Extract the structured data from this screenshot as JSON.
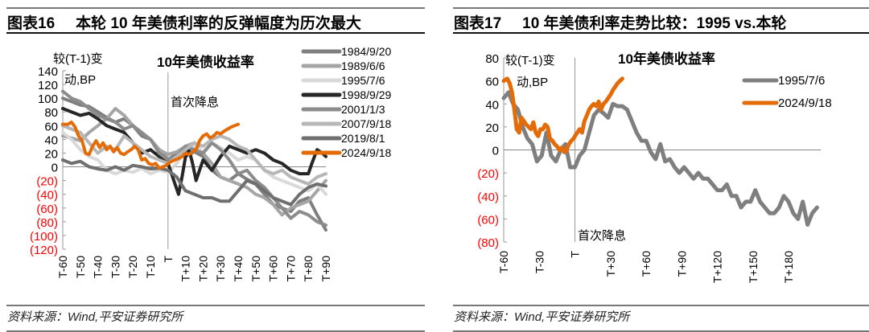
{
  "left_panel": {
    "figure_number": "图表16",
    "figure_title": "本轮 10 年美债利率的反弹幅度为历次最大",
    "source": "资料来源：Wind,平安证券研究所"
  },
  "right_panel": {
    "figure_number": "图表17",
    "figure_title": "10 年美债利率走势比较：1995 vs.本轮",
    "source": "资料来源：Wind,平安证券研究所"
  },
  "chart_data": [
    {
      "type": "line",
      "title": "10年美债收益率",
      "ylabel": "较(T-1)变动,BP",
      "annotation": "首次降息",
      "ylim": [
        -120,
        140
      ],
      "yticks": [
        "140",
        "120",
        "100",
        "80",
        "60",
        "40",
        "20",
        "0",
        "(20)",
        "(40)",
        "(60)",
        "(80)",
        "(100)",
        "(120)"
      ],
      "negative_tick_color": "#ff0000",
      "xticks": [
        "T-60",
        "T-50",
        "T-40",
        "T-30",
        "T-20",
        "T-10",
        "T",
        "T+10",
        "T+20",
        "T+30",
        "T+40",
        "T+50",
        "T+60",
        "T+70",
        "T+80",
        "T+90"
      ],
      "x_range": [
        -60,
        90
      ],
      "legend_position": "upper right",
      "series": [
        {
          "name": "1984/9/20",
          "color": "#7f7f7f",
          "width": 4,
          "x": [
            -60,
            -55,
            -50,
            -45,
            -40,
            -35,
            -30,
            -25,
            -20,
            -15,
            -10,
            -5,
            0,
            5,
            10,
            15,
            20,
            25,
            30,
            35,
            40,
            45,
            50,
            55,
            60,
            65,
            70,
            75,
            80,
            85,
            90
          ],
          "values": [
            100,
            95,
            90,
            88,
            80,
            72,
            65,
            70,
            60,
            45,
            40,
            25,
            10,
            20,
            15,
            22,
            15,
            -5,
            -15,
            -20,
            -10,
            -18,
            -25,
            -40,
            -55,
            -60,
            -65,
            -50,
            -45,
            -70,
            -92
          ]
        },
        {
          "name": "1989/6/6",
          "color": "#a5a5a5",
          "width": 4,
          "x": [
            -60,
            -55,
            -50,
            -45,
            -40,
            -35,
            -30,
            -25,
            -20,
            -15,
            -10,
            -5,
            0,
            5,
            10,
            15,
            20,
            25,
            30,
            35,
            40,
            45,
            50,
            55,
            60,
            65,
            70,
            75,
            80,
            85,
            90
          ],
          "values": [
            45,
            42,
            38,
            50,
            60,
            70,
            85,
            75,
            60,
            50,
            40,
            25,
            18,
            22,
            30,
            35,
            20,
            5,
            -15,
            -20,
            -25,
            -30,
            -40,
            -45,
            -55,
            -70,
            -60,
            -55,
            -50,
            -35,
            -20
          ]
        },
        {
          "name": "1995/7/6",
          "color": "#d9d9d9",
          "width": 4,
          "x": [
            -60,
            -55,
            -50,
            -45,
            -40,
            -35,
            -30,
            -25,
            -20,
            -15,
            -10,
            -5,
            0,
            5,
            10,
            15,
            20,
            25,
            30,
            35,
            40,
            45,
            50,
            55,
            60,
            65,
            70,
            75,
            80,
            85,
            90
          ],
          "values": [
            50,
            40,
            25,
            15,
            10,
            -5,
            -10,
            -5,
            -8,
            -2,
            -10,
            -5,
            -8,
            5,
            25,
            30,
            22,
            35,
            28,
            20,
            10,
            15,
            10,
            -5,
            -15,
            -20,
            -25,
            -30,
            -35,
            -25,
            -40
          ]
        },
        {
          "name": "1998/9/29",
          "color": "#262626",
          "width": 4,
          "x": [
            -60,
            -55,
            -50,
            -45,
            -40,
            -35,
            -30,
            -25,
            -20,
            -15,
            -10,
            -5,
            0,
            2,
            4,
            6,
            8,
            10,
            12,
            14,
            16,
            18,
            20,
            25,
            30,
            35,
            40,
            45,
            50,
            55,
            60,
            65,
            70,
            75,
            80,
            82,
            85,
            88,
            90
          ],
          "values": [
            85,
            80,
            75,
            78,
            70,
            60,
            55,
            50,
            35,
            20,
            25,
            15,
            5,
            -10,
            -25,
            -40,
            -15,
            15,
            25,
            5,
            -20,
            -5,
            10,
            -5,
            15,
            30,
            25,
            20,
            25,
            20,
            10,
            5,
            -5,
            -10,
            -10,
            5,
            25,
            20,
            15
          ]
        },
        {
          "name": "2001/1/3",
          "color": "#8c8c8c",
          "width": 4,
          "x": [
            -60,
            -55,
            -50,
            -45,
            -40,
            -35,
            -30,
            -25,
            -20,
            -15,
            -10,
            -5,
            0,
            5,
            10,
            15,
            20,
            25,
            30,
            35,
            40,
            45,
            50,
            55,
            60,
            65,
            70,
            75,
            80,
            85,
            90
          ],
          "values": [
            110,
            100,
            95,
            85,
            75,
            70,
            65,
            55,
            60,
            50,
            40,
            20,
            10,
            15,
            30,
            25,
            20,
            35,
            25,
            10,
            -10,
            -5,
            -20,
            -30,
            -45,
            -60,
            -75,
            -65,
            -70,
            -80,
            -85
          ]
        },
        {
          "name": "2007/9/18",
          "color": "#b7b7b7",
          "width": 4,
          "x": [
            -60,
            -55,
            -50,
            -45,
            -40,
            -35,
            -30,
            -25,
            -20,
            -15,
            -10,
            -5,
            0,
            5,
            10,
            15,
            20,
            25,
            30,
            35,
            40,
            45,
            50,
            55,
            60,
            65,
            70,
            75,
            80,
            85,
            90
          ],
          "values": [
            60,
            55,
            50,
            35,
            20,
            30,
            25,
            45,
            35,
            25,
            15,
            10,
            5,
            15,
            25,
            35,
            30,
            40,
            45,
            40,
            30,
            25,
            10,
            -5,
            -10,
            -5,
            -15,
            -20,
            -25,
            -15,
            -10
          ]
        },
        {
          "name": "2019/8/1",
          "color": "#6f6f6f",
          "width": 4,
          "x": [
            -60,
            -55,
            -50,
            -45,
            -40,
            -35,
            -30,
            -25,
            -20,
            -15,
            -10,
            -5,
            0,
            5,
            10,
            15,
            20,
            25,
            30,
            35,
            40,
            45,
            50,
            55,
            60,
            65,
            70,
            75,
            80,
            85,
            90
          ],
          "values": [
            10,
            5,
            8,
            0,
            -3,
            -5,
            0,
            -5,
            2,
            0,
            -3,
            -2,
            -5,
            -15,
            -35,
            -40,
            -45,
            -45,
            -50,
            -50,
            -35,
            -20,
            -25,
            -35,
            -45,
            -50,
            -55,
            -40,
            -30,
            -25,
            -28
          ]
        },
        {
          "name": "2024/9/18",
          "color": "#e36c09",
          "width": 4,
          "x": [
            -60,
            -57,
            -55,
            -53,
            -51,
            -49,
            -47,
            -45,
            -43,
            -41,
            -39,
            -37,
            -35,
            -33,
            -31,
            -29,
            -27,
            -25,
            -23,
            -21,
            -19,
            -17,
            -15,
            -13,
            -11,
            -9,
            -7,
            -5,
            -3,
            -1,
            0,
            2,
            4,
            6,
            8,
            10,
            12,
            14,
            16,
            18,
            20,
            22,
            24,
            26,
            28,
            30,
            32,
            34,
            36,
            38,
            40
          ],
          "values": [
            62,
            62,
            65,
            58,
            45,
            38,
            20,
            18,
            30,
            38,
            28,
            35,
            25,
            30,
            22,
            28,
            20,
            18,
            22,
            25,
            30,
            25,
            10,
            12,
            5,
            3,
            5,
            -2,
            0,
            2,
            5,
            8,
            10,
            12,
            15,
            20,
            18,
            22,
            25,
            38,
            45,
            48,
            42,
            45,
            50,
            48,
            52,
            55,
            58,
            60,
            62
          ]
        }
      ]
    },
    {
      "type": "line",
      "title": "10年美债收益率",
      "ylabel": "较(T-1)变动,BP",
      "annotation": "首次降息",
      "ylim": [
        -80,
        80
      ],
      "yticks": [
        "80",
        "60",
        "40",
        "20",
        "0",
        "(20)",
        "(40)",
        "(60)",
        "(80)"
      ],
      "negative_tick_color": "#ff0000",
      "xticks": [
        "T-60",
        "T-30",
        "T",
        "T+30",
        "T+60",
        "T+90",
        "T+120",
        "T+150",
        "T+180"
      ],
      "x_range": [
        -60,
        207
      ],
      "legend_position": "upper right",
      "series": [
        {
          "name": "1995/7/6",
          "color": "#7f7f7f",
          "width": 5,
          "x": [
            -60,
            -56,
            -52,
            -48,
            -44,
            -40,
            -36,
            -32,
            -28,
            -24,
            -20,
            -16,
            -12,
            -8,
            -4,
            0,
            4,
            8,
            12,
            16,
            20,
            24,
            28,
            32,
            36,
            40,
            44,
            48,
            52,
            56,
            60,
            64,
            68,
            72,
            76,
            80,
            84,
            88,
            92,
            96,
            100,
            104,
            108,
            112,
            116,
            120,
            124,
            128,
            132,
            136,
            140,
            144,
            148,
            152,
            156,
            160,
            164,
            168,
            172,
            176,
            180,
            184,
            188,
            192,
            196,
            200,
            204
          ],
          "values": [
            45,
            50,
            40,
            35,
            20,
            10,
            5,
            -10,
            -5,
            15,
            -5,
            -10,
            0,
            5,
            -15,
            -15,
            -5,
            0,
            15,
            30,
            35,
            32,
            28,
            40,
            38,
            38,
            35,
            25,
            15,
            8,
            8,
            -2,
            -8,
            5,
            -10,
            -8,
            -15,
            -20,
            -15,
            -20,
            -25,
            -20,
            -25,
            -25,
            -30,
            -35,
            -35,
            -30,
            -40,
            -40,
            -50,
            -45,
            -45,
            -35,
            -45,
            -50,
            -55,
            -55,
            -50,
            -40,
            -45,
            -55,
            -60,
            -45,
            -65,
            -55,
            -50
          ]
        },
        {
          "name": "2024/9/18",
          "color": "#e36c09",
          "width": 5,
          "x": [
            -60,
            -57,
            -55,
            -53,
            -51,
            -49,
            -47,
            -45,
            -43,
            -41,
            -39,
            -37,
            -35,
            -33,
            -31,
            -29,
            -27,
            -25,
            -23,
            -21,
            -19,
            -17,
            -15,
            -13,
            -11,
            -9,
            -7,
            -5,
            -3,
            -1,
            0,
            2,
            4,
            6,
            8,
            10,
            12,
            14,
            16,
            18,
            20,
            22,
            24,
            26,
            28,
            30,
            32,
            34,
            36,
            38,
            40
          ],
          "values": [
            60,
            62,
            58,
            50,
            35,
            18,
            15,
            28,
            25,
            22,
            20,
            18,
            24,
            15,
            12,
            18,
            18,
            22,
            20,
            10,
            8,
            5,
            3,
            0,
            2,
            -2,
            0,
            5,
            8,
            10,
            12,
            15,
            18,
            15,
            25,
            30,
            35,
            38,
            40,
            38,
            42,
            35,
            40,
            42,
            45,
            48,
            52,
            55,
            58,
            60,
            62
          ]
        }
      ]
    }
  ]
}
